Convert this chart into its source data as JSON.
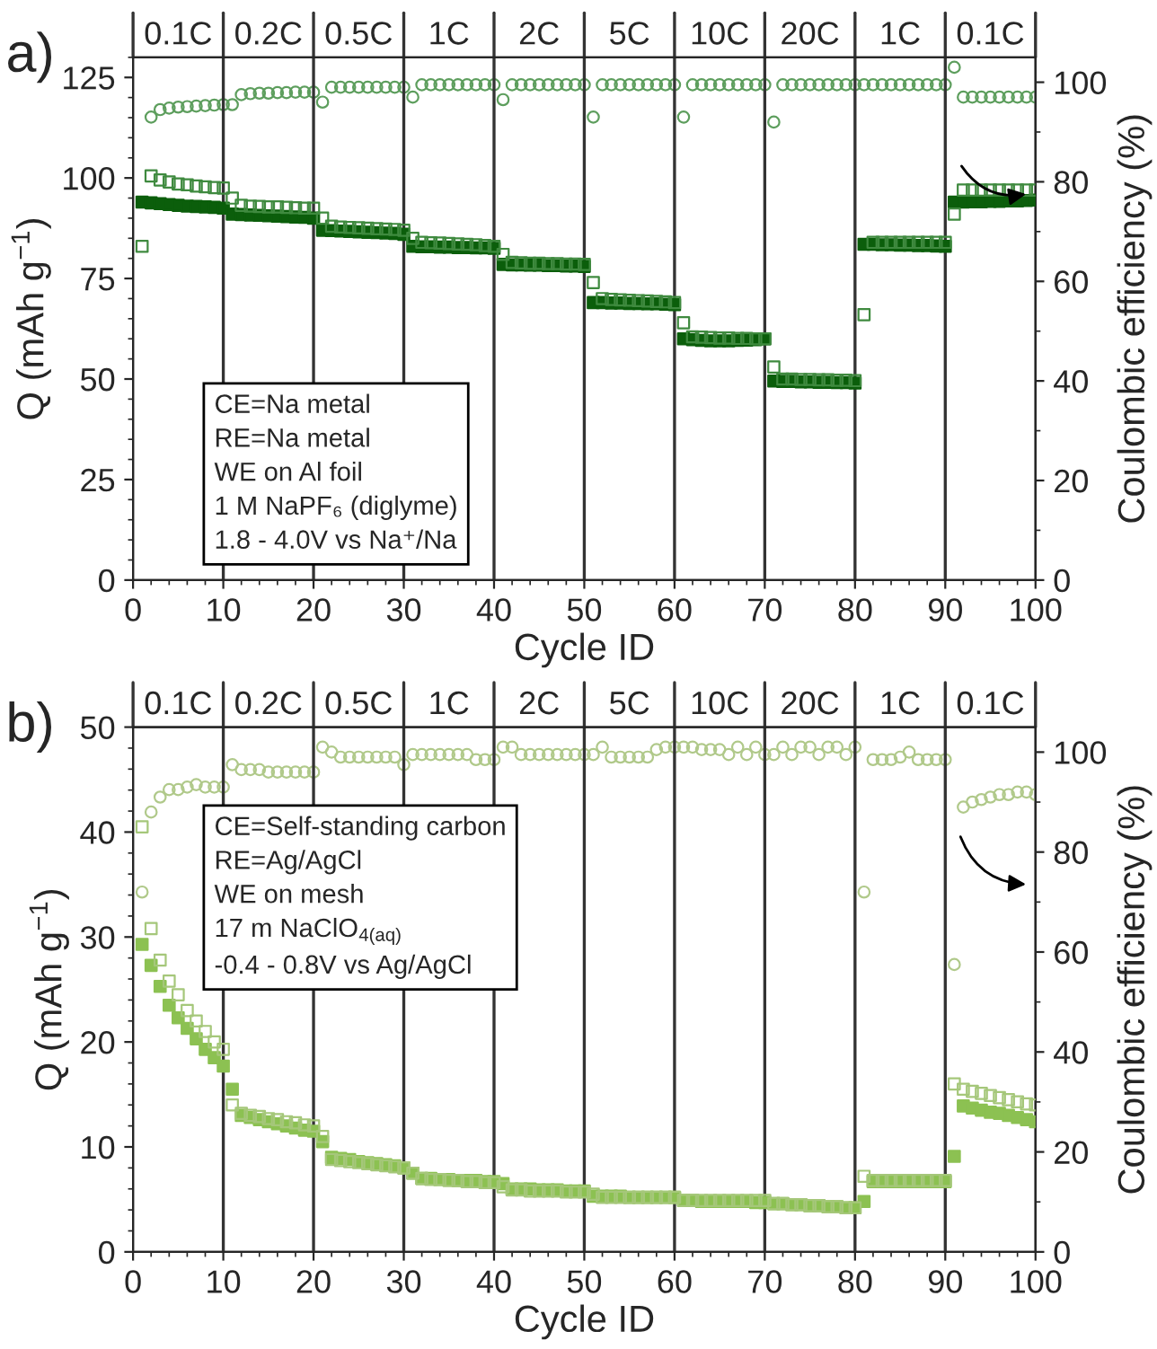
{
  "chart_data": [
    {
      "type": "scatter",
      "title": "a)",
      "xlabel": "Cycle ID",
      "ylabel": "Q (mAh g$^{−1}$)",
      "y2label": "Coulombic efficiency (%)",
      "x": [
        1,
        2,
        3,
        4,
        5,
        6,
        7,
        8,
        9,
        10,
        11,
        12,
        13,
        14,
        15,
        16,
        17,
        18,
        19,
        20,
        21,
        22,
        23,
        24,
        25,
        26,
        27,
        28,
        29,
        30,
        31,
        32,
        33,
        34,
        35,
        36,
        37,
        38,
        39,
        40,
        41,
        42,
        43,
        44,
        45,
        46,
        47,
        48,
        49,
        50,
        51,
        52,
        53,
        54,
        55,
        56,
        57,
        58,
        59,
        60,
        61,
        62,
        63,
        64,
        65,
        66,
        67,
        68,
        69,
        70,
        71,
        72,
        73,
        74,
        75,
        76,
        77,
        78,
        79,
        80,
        81,
        82,
        83,
        84,
        85,
        86,
        87,
        88,
        89,
        90,
        91,
        92,
        93,
        94,
        95,
        96,
        97,
        98,
        99,
        100
      ],
      "xlim": [
        0,
        100
      ],
      "xticks": [
        0,
        10,
        20,
        30,
        40,
        50,
        60,
        70,
        80,
        90,
        100
      ],
      "ylim": [
        0,
        130
      ],
      "yticks": [
        0,
        25,
        50,
        75,
        100,
        125
      ],
      "y2lim": [
        0,
        105
      ],
      "y2ticks": [
        0,
        20,
        40,
        60,
        80,
        100
      ],
      "ref_lines": [
        {
          "axis": "x",
          "value": 10
        },
        {
          "axis": "x",
          "value": 20
        },
        {
          "axis": "x",
          "value": 30
        },
        {
          "axis": "x",
          "value": 40
        },
        {
          "axis": "x",
          "value": 50
        },
        {
          "axis": "x",
          "value": 60
        },
        {
          "axis": "x",
          "value": 70
        },
        {
          "axis": "x",
          "value": 80
        },
        {
          "axis": "x",
          "value": 90
        }
      ],
      "annotations": [
        "0.1C",
        "0.2C",
        "0.5C",
        "1C",
        "2C",
        "5C",
        "10C",
        "20C",
        "1C",
        "0.1C",
        "CE=Na metal",
        "RE=Na metal",
        "WE on Al foil",
        "1 M NaPF₆ (diglyme)",
        "1.8 - 4.0V vs Na⁺/Na"
      ],
      "grid": false,
      "legend": false,
      "series": [
        {
          "marker": "square",
          "color": "#0b5e0b",
          "values": [
            94,
            93.8,
            93.6,
            93.4,
            93.2,
            93,
            92.9,
            92.8,
            92.7,
            92.5,
            91,
            90.9,
            90.8,
            90.7,
            90.6,
            90.5,
            90.4,
            90.3,
            90.2,
            90,
            87,
            86.9,
            86.8,
            86.7,
            86.6,
            86.5,
            86.4,
            86.3,
            86.2,
            86,
            83,
            82.9,
            82.9,
            82.8,
            82.8,
            82.7,
            82.7,
            82.6,
            82.6,
            82.5,
            78.5,
            78.4,
            78.4,
            78.3,
            78.3,
            78.2,
            78.2,
            78.1,
            78.1,
            78,
            69,
            69,
            68.9,
            68.9,
            68.8,
            68.8,
            68.7,
            68.7,
            68.6,
            68.5,
            60,
            59.8,
            59.6,
            59.5,
            59.5,
            59.5,
            59.6,
            59.7,
            59.8,
            60,
            49.5,
            49.4,
            49.4,
            49.3,
            49.3,
            49.2,
            49.2,
            49.1,
            49.1,
            49,
            83.5,
            83.5,
            83.4,
            83.4,
            83.3,
            83.3,
            83.2,
            83.2,
            83.1,
            83,
            94,
            94,
            94.1,
            94.1,
            94.2,
            94.2,
            94.3,
            94.3,
            94.4,
            94.5
          ]
        },
        {
          "marker": "square",
          "color": "#3f8a3f",
          "values": [
            83,
            100.5,
            99.5,
            99,
            98.5,
            98.3,
            98,
            97.8,
            97.6,
            97.5,
            95,
            93.2,
            93,
            92.9,
            92.8,
            92.8,
            92.7,
            92.6,
            92.5,
            92.5,
            90,
            88,
            87.8,
            87.7,
            87.6,
            87.5,
            87.4,
            87.3,
            87.2,
            87,
            85,
            84,
            83.9,
            83.8,
            83.7,
            83.6,
            83.5,
            83.4,
            83.2,
            83,
            81,
            79,
            78.9,
            78.8,
            78.8,
            78.7,
            78.7,
            78.6,
            78.6,
            78.5,
            74,
            70,
            69.8,
            69.7,
            69.6,
            69.5,
            69.4,
            69.3,
            69.2,
            69,
            64,
            60.5,
            60.4,
            60.3,
            60.2,
            60.2,
            60.1,
            60.1,
            60,
            60,
            53,
            50,
            50,
            49.9,
            49.9,
            49.8,
            49.8,
            49.7,
            49.7,
            49.6,
            66,
            84,
            84,
            84,
            84,
            84,
            84,
            84,
            84,
            84,
            91,
            97,
            97,
            97,
            97,
            97,
            97,
            97,
            97,
            97
          ]
        },
        {
          "marker": "circle",
          "axis": "y2",
          "color": "#5d9e5d",
          "values": [
            null,
            93,
            94.5,
            94.8,
            95,
            95.1,
            95.2,
            95.3,
            95.4,
            95.5,
            95.5,
            97.5,
            97.7,
            97.8,
            97.8,
            97.9,
            97.9,
            98,
            98,
            98,
            96,
            99,
            99,
            99,
            99,
            99,
            99,
            99,
            99,
            99,
            97,
            99.5,
            99.5,
            99.5,
            99.5,
            99.5,
            99.5,
            99.5,
            99.5,
            99.5,
            96.5,
            99.5,
            99.5,
            99.5,
            99.5,
            99.5,
            99.5,
            99.5,
            99.5,
            99.5,
            93,
            99.5,
            99.5,
            99.5,
            99.5,
            99.5,
            99.5,
            99.5,
            99.5,
            99.5,
            93,
            99.5,
            99.5,
            99.5,
            99.5,
            99.5,
            99.5,
            99.5,
            99.5,
            99.5,
            92,
            99.5,
            99.5,
            99.5,
            99.5,
            99.5,
            99.5,
            99.5,
            99.5,
            99.5,
            99.5,
            99.5,
            99.5,
            99.5,
            99.5,
            99.5,
            99.5,
            99.5,
            99.5,
            99.5,
            103,
            97,
            97,
            97,
            97,
            97,
            97,
            97,
            97,
            97
          ]
        }
      ]
    },
    {
      "type": "scatter",
      "title": "b)",
      "xlabel": "Cycle ID",
      "ylabel": "Q (mAh g$^{−1}$)",
      "y2label": "Coulombic efficiency (%)",
      "x": [
        1,
        2,
        3,
        4,
        5,
        6,
        7,
        8,
        9,
        10,
        11,
        12,
        13,
        14,
        15,
        16,
        17,
        18,
        19,
        20,
        21,
        22,
        23,
        24,
        25,
        26,
        27,
        28,
        29,
        30,
        31,
        32,
        33,
        34,
        35,
        36,
        37,
        38,
        39,
        40,
        41,
        42,
        43,
        44,
        45,
        46,
        47,
        48,
        49,
        50,
        51,
        52,
        53,
        54,
        55,
        56,
        57,
        58,
        59,
        60,
        61,
        62,
        63,
        64,
        65,
        66,
        67,
        68,
        69,
        70,
        71,
        72,
        73,
        74,
        75,
        76,
        77,
        78,
        79,
        80,
        81,
        82,
        83,
        84,
        85,
        86,
        87,
        88,
        89,
        90,
        91,
        92,
        93,
        94,
        95,
        96,
        97,
        98,
        99,
        100
      ],
      "xlim": [
        0,
        100
      ],
      "xticks": [
        0,
        10,
        20,
        30,
        40,
        50,
        60,
        70,
        80,
        90,
        100
      ],
      "ylim": [
        0,
        50
      ],
      "yticks": [
        0,
        10,
        20,
        30,
        40,
        50
      ],
      "y2lim": [
        0,
        105
      ],
      "y2ticks": [
        0,
        20,
        40,
        60,
        80,
        100
      ],
      "ref_lines": [
        {
          "axis": "x",
          "value": 10
        },
        {
          "axis": "x",
          "value": 20
        },
        {
          "axis": "x",
          "value": 30
        },
        {
          "axis": "x",
          "value": 40
        },
        {
          "axis": "x",
          "value": 50
        },
        {
          "axis": "x",
          "value": 60
        },
        {
          "axis": "x",
          "value": 70
        },
        {
          "axis": "x",
          "value": 80
        },
        {
          "axis": "x",
          "value": 90
        }
      ],
      "annotations": [
        "0.1C",
        "0.2C",
        "0.5C",
        "1C",
        "2C",
        "5C",
        "10C",
        "20C",
        "1C",
        "0.1C",
        "CE=Self-standing carbon",
        "RE=Ag/AgCl",
        "WE on mesh",
        "17 m NaClO$_{4(aq)}$",
        "-0.4 - 0.8V vs Ag/AgCl"
      ],
      "grid": false,
      "legend": false,
      "series": [
        {
          "marker": "square",
          "color": "#8cc152",
          "values": [
            29.3,
            27.3,
            25.3,
            23.5,
            22.3,
            21.3,
            20.3,
            19.3,
            18.5,
            17.7,
            15.5,
            13,
            12.8,
            12.6,
            12.4,
            12.2,
            12,
            11.8,
            11.6,
            11.5,
            10.5,
            9,
            8.9,
            8.8,
            8.6,
            8.5,
            8.4,
            8.3,
            8.2,
            8,
            7.5,
            7,
            7,
            6.9,
            6.9,
            6.8,
            6.8,
            6.8,
            6.7,
            6.7,
            6.5,
            6,
            6,
            6,
            5.9,
            5.9,
            5.9,
            5.8,
            5.8,
            5.8,
            5.3,
            5.3,
            5.3,
            5.3,
            5.2,
            5.2,
            5.2,
            5.2,
            5.2,
            5.2,
            4.9,
            4.9,
            4.8,
            4.8,
            4.8,
            4.8,
            4.8,
            4.8,
            4.7,
            4.7,
            4.6,
            4.6,
            4.5,
            4.5,
            4.4,
            4.4,
            4.3,
            4.3,
            4.2,
            4.2,
            4.8,
            6.7,
            6.7,
            6.7,
            6.7,
            6.7,
            6.7,
            6.7,
            6.7,
            6.7,
            9.1,
            13.9,
            13.7,
            13.5,
            13.3,
            13.2,
            13,
            12.8,
            12.6,
            12.4
          ]
        },
        {
          "marker": "square",
          "color": "#a5c77a",
          "values": [
            40.5,
            30.8,
            27.8,
            25.8,
            24.5,
            23,
            22,
            21,
            20,
            19.3,
            14,
            13.2,
            13,
            12.9,
            12.7,
            12.6,
            12.4,
            12.3,
            12.1,
            12,
            11,
            8.8,
            8.7,
            8.6,
            8.5,
            8.4,
            8.3,
            8.2,
            8.1,
            8,
            7.5,
            7,
            6.9,
            6.9,
            6.8,
            6.8,
            6.7,
            6.7,
            6.6,
            6.6,
            6.2,
            5.9,
            5.9,
            5.8,
            5.8,
            5.8,
            5.8,
            5.7,
            5.7,
            5.7,
            5.5,
            5.2,
            5.2,
            5.2,
            5.2,
            5.2,
            5.2,
            5.2,
            5.2,
            5.2,
            4.9,
            4.9,
            4.9,
            4.9,
            4.9,
            4.9,
            4.9,
            4.9,
            4.9,
            4.9,
            4.6,
            4.6,
            4.5,
            4.5,
            4.4,
            4.4,
            4.3,
            4.3,
            4.2,
            4.2,
            7.2,
            6.8,
            6.8,
            6.8,
            6.8,
            6.8,
            6.8,
            6.8,
            6.8,
            6.8,
            16,
            15.5,
            15.3,
            15.1,
            14.9,
            14.7,
            14.5,
            14.3,
            14.1,
            14
          ]
        },
        {
          "marker": "circle",
          "axis": "y2",
          "color": "#b0c98a",
          "values": [
            72,
            88,
            91,
            92.5,
            92.5,
            93,
            93.5,
            93,
            93,
            93,
            97.5,
            96.5,
            96.5,
            96.5,
            96,
            96,
            96,
            96,
            96,
            96,
            101,
            100,
            99,
            99,
            99,
            99,
            99,
            99,
            99,
            97.5,
            99.5,
            99.5,
            99.5,
            99.5,
            99.5,
            99.5,
            99.5,
            98.5,
            98.5,
            98.5,
            101,
            101,
            99.5,
            99.5,
            99.5,
            99.5,
            99.5,
            99.5,
            99.5,
            99.5,
            99.5,
            101,
            99,
            99,
            99,
            99,
            99,
            100.5,
            101,
            101,
            101,
            101,
            100.5,
            100.5,
            100.5,
            99.5,
            101,
            99.5,
            101,
            99.5,
            99.5,
            101,
            99.5,
            101,
            101,
            99.5,
            101,
            101,
            99.5,
            101,
            72,
            98.5,
            98.5,
            98.5,
            99,
            100,
            98.5,
            98.5,
            98.5,
            98.5,
            57.5,
            89,
            90,
            90.5,
            91,
            91.5,
            91.5,
            92,
            92,
            91.5
          ]
        }
      ]
    }
  ]
}
